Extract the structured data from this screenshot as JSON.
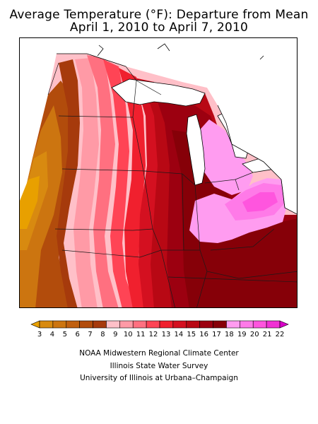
{
  "title_line1": "Average Temperature (°F): Departure from Mean",
  "title_line2": "April 1, 2010 to April 7, 2010",
  "legend": {
    "labels": [
      "3",
      "4",
      "5",
      "6",
      "7",
      "8",
      "9",
      "10",
      "11",
      "12",
      "13",
      "14",
      "15",
      "16",
      "17",
      "18",
      "19",
      "20",
      "21",
      "22"
    ],
    "colors": [
      "#e8a000",
      "#d88a10",
      "#cc7510",
      "#c06010",
      "#b24c0c",
      "#a63a0c",
      "#ffc0c8",
      "#ff9aa6",
      "#ff7080",
      "#ff4455",
      "#f0202e",
      "#d41020",
      "#b80814",
      "#9c0010",
      "#860008",
      "#ff9cf0",
      "#ff7ae8",
      "#ff55de",
      "#f030d4",
      "#d800c8"
    ]
  },
  "credits": [
    "NOAA Midwestern Regional Climate Center",
    "Illinois State Water Survey",
    "University of Illinois at Urbana–Champaign"
  ]
}
